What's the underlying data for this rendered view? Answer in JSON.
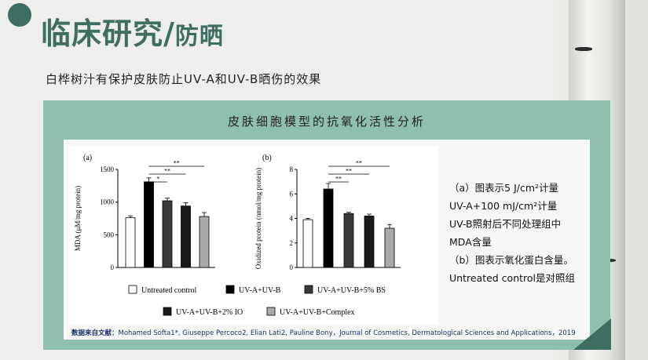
{
  "title": {
    "main": "临床研究",
    "separator": "/",
    "sub": "防晒"
  },
  "subtitle": "白桦树汁有保护皮肤防止UV-A和UV-B晒伤的效果",
  "panel_heading": "皮肤细胞模型的抗氧化活性分析",
  "description": {
    "line_a1": "（a）图表示5 J/cm²计量",
    "line_a2": "UV-A+100 mJ/cm²计量",
    "line_a3": "UV-B照射后不同处理组中",
    "line_a4": "MDA含量",
    "line_b1": "（b）图表示氧化蛋白含量。",
    "line_b2": "Untreated control是对照组"
  },
  "source": {
    "label": "数据来自文献：",
    "text": "Mohamed Softa1*, Giuseppe Percoco2, Elian Lati2, Pauline Bony，Journal of Cosmetics, Dermatological Sciences and Applications，2019"
  },
  "colors": {
    "accent": "#3e6e62",
    "panel": "#8fbfad"
  },
  "legend": [
    {
      "label": "Untreated control",
      "color": "#ffffff"
    },
    {
      "label": "UV-A+UV-B",
      "color": "#000000"
    },
    {
      "label": "UV-A+UV-B+5% BS",
      "color": "#3a3a3a"
    },
    {
      "label": "UV-A+UV-B+2% IO",
      "color": "#1a1a1a"
    },
    {
      "label": "UV-A+UV-B+Complex",
      "color": "#a9a9a9"
    }
  ],
  "chart_data": [
    {
      "type": "bar",
      "panel_label": "(a)",
      "ylabel": "MDA (μM/mg protein)",
      "ylim": [
        0,
        1500
      ],
      "yticks": [
        "0",
        "500",
        "1000",
        "1500"
      ],
      "categories": [
        "Untreated control",
        "UV-A+UV-B",
        "UV-A+UV-B+5% BS",
        "UV-A+UV-B+2% IO",
        "UV-A+UV-B+Complex"
      ],
      "values": [
        760,
        1310,
        1020,
        940,
        780
      ],
      "errors": [
        30,
        60,
        40,
        50,
        60
      ],
      "significance": [
        "*",
        "**",
        "**"
      ]
    },
    {
      "type": "bar",
      "panel_label": "(b)",
      "ylabel": "Oxidized protein (nmol/mg protein)",
      "ylim": [
        0,
        8
      ],
      "yticks": [
        "0",
        "2",
        "4",
        "6",
        "8"
      ],
      "categories": [
        "Untreated control",
        "UV-A+UV-B",
        "UV-A+UV-B+5% BS",
        "UV-A+UV-B+2% IO",
        "UV-A+UV-B+Complex"
      ],
      "values": [
        3.9,
        6.4,
        4.4,
        4.2,
        3.2
      ],
      "errors": [
        0.1,
        0.45,
        0.1,
        0.15,
        0.3
      ],
      "significance": [
        "**",
        "**",
        "**"
      ]
    }
  ]
}
